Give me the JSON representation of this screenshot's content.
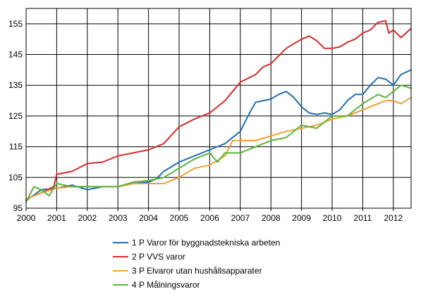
{
  "chart_data": {
    "type": "line",
    "title": "",
    "xlabel": "",
    "ylabel": "",
    "xlim": [
      2000,
      2012.58
    ],
    "ylim": [
      95,
      160
    ],
    "grid": true,
    "legend_position": "bottom",
    "x_ticks": [
      "2000",
      "2001",
      "2002",
      "2003",
      "2004",
      "2005",
      "2006",
      "2007",
      "2008",
      "2009",
      "2010",
      "2011",
      "2012"
    ],
    "y_ticks": [
      "95",
      "105",
      "115",
      "125",
      "135",
      "145",
      "155"
    ],
    "colors": {
      "series1": "#1f6fb2",
      "series2": "#d62b2b",
      "series3": "#f0a030",
      "series4": "#5bb43c",
      "grid": "#000000",
      "axis": "#000000"
    },
    "series": [
      {
        "name": "1 P Varor för byggnadstekniska arbeten",
        "x": [
          2000,
          2000.5,
          2001,
          2001.5,
          2002,
          2002.5,
          2003,
          2003.5,
          2004,
          2004.25,
          2004.5,
          2005,
          2005.5,
          2006,
          2006.5,
          2007,
          2007.25,
          2007.5,
          2007.75,
          2008,
          2008.25,
          2008.5,
          2008.75,
          2009,
          2009.25,
          2009.5,
          2009.75,
          2010,
          2010.25,
          2010.5,
          2010.75,
          2011,
          2011.25,
          2011.5,
          2011.75,
          2012,
          2012.25,
          2012.58
        ],
        "values": [
          97.5,
          101,
          101.5,
          102.5,
          101,
          102,
          102,
          103,
          103.5,
          104.5,
          107,
          110,
          112,
          114,
          116,
          120,
          125,
          129.5,
          130,
          130.5,
          132,
          133,
          131,
          128,
          126,
          125.5,
          126,
          125.5,
          127,
          130,
          132,
          132,
          135,
          137.5,
          137,
          135,
          138.5,
          140
        ]
      },
      {
        "name": "2 P VVS varor",
        "x": [
          2000,
          2000.5,
          2000.9,
          2001,
          2001.5,
          2002,
          2002.5,
          2003,
          2003.5,
          2004,
          2004.5,
          2005,
          2005.5,
          2006,
          2006.5,
          2007,
          2007.5,
          2007.75,
          2008,
          2008.5,
          2008.75,
          2009,
          2009.25,
          2009.5,
          2009.75,
          2010,
          2010.25,
          2010.5,
          2010.75,
          2011,
          2011.25,
          2011.5,
          2011.75,
          2011.85,
          2012,
          2012.25,
          2012.58
        ],
        "values": [
          98,
          100,
          102,
          106,
          107,
          109.5,
          110,
          112,
          113,
          114,
          116,
          121.5,
          124,
          126,
          130,
          136,
          138.5,
          141,
          142,
          147,
          148.5,
          150,
          151,
          149.5,
          147,
          147,
          147.5,
          149,
          150,
          152,
          153,
          155.5,
          156,
          152,
          153,
          150.5,
          153.5
        ]
      },
      {
        "name": "3 P Elvaror utan hushållsapparater",
        "x": [
          2000,
          2000.5,
          2001,
          2001.5,
          2002,
          2002.5,
          2003,
          2003.5,
          2004,
          2004.5,
          2005,
          2005.5,
          2006,
          2006.5,
          2006.75,
          2007,
          2007.5,
          2008,
          2008.5,
          2009,
          2009.5,
          2010,
          2010.5,
          2011,
          2011.25,
          2011.5,
          2011.75,
          2012,
          2012.25,
          2012.58
        ],
        "values": [
          98,
          100,
          101.5,
          102,
          102,
          102,
          102,
          103,
          103,
          103,
          105,
          108,
          109,
          112,
          117,
          117,
          117,
          118.5,
          120,
          121,
          122,
          124,
          125,
          127,
          128,
          129,
          130,
          130,
          129,
          131
        ]
      },
      {
        "name": "4 P Målningsvaror",
        "x": [
          2000,
          2000.25,
          2000.5,
          2000.75,
          2001,
          2001.5,
          2002,
          2002.5,
          2003,
          2003.5,
          2004,
          2004.5,
          2005,
          2005.5,
          2006,
          2006.25,
          2006.5,
          2007,
          2007.5,
          2008,
          2008.5,
          2009,
          2009.5,
          2010,
          2010.5,
          2011,
          2011.5,
          2011.75,
          2012,
          2012.25,
          2012.58
        ],
        "values": [
          97,
          102,
          101,
          99,
          103,
          102,
          102,
          102,
          102,
          103.5,
          104,
          105,
          108,
          111,
          113,
          110,
          113,
          113,
          115,
          117,
          118,
          122,
          121,
          125,
          125,
          129,
          132,
          131,
          133,
          135,
          134
        ]
      }
    ]
  }
}
